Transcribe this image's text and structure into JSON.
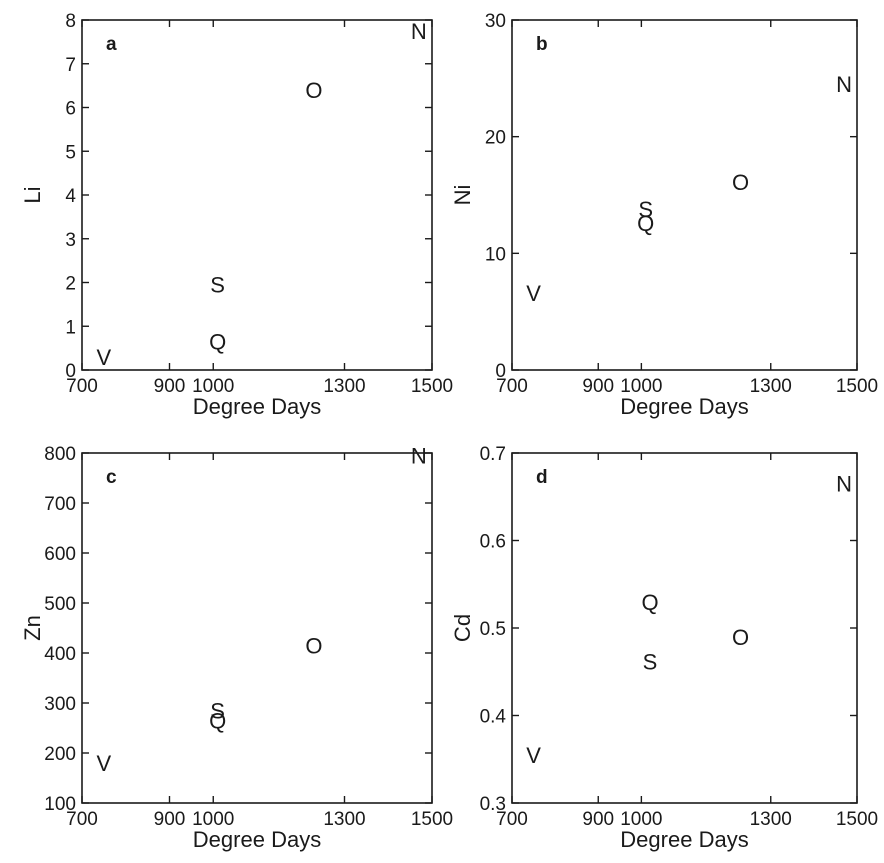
{
  "chart_data": [
    {
      "type": "scatter",
      "panel_label": "a",
      "xlabel": "Degree Days",
      "ylabel": "Li",
      "xlim": [
        700,
        1500
      ],
      "ylim": [
        0,
        8
      ],
      "xticks": [
        700,
        900,
        1000,
        1300,
        1500
      ],
      "xtick_labels": [
        "700",
        "900",
        "1000",
        "1300",
        "1500"
      ],
      "yticks": [
        0,
        1,
        2,
        3,
        4,
        5,
        6,
        7,
        8
      ],
      "ytick_labels": [
        "0",
        "1",
        "2",
        "3",
        "4",
        "5",
        "6",
        "7",
        "8"
      ],
      "points": [
        {
          "label": "V",
          "x": 750,
          "y": 0.3
        },
        {
          "label": "Q",
          "x": 1010,
          "y": 0.65
        },
        {
          "label": "S",
          "x": 1010,
          "y": 1.95
        },
        {
          "label": "O",
          "x": 1230,
          "y": 6.4
        },
        {
          "label": "N",
          "x": 1470,
          "y": 7.75
        }
      ]
    },
    {
      "type": "scatter",
      "panel_label": "b",
      "xlabel": "Degree Days",
      "ylabel": "Ni",
      "xlim": [
        700,
        1500
      ],
      "ylim": [
        0,
        30
      ],
      "xticks": [
        700,
        900,
        1000,
        1300,
        1500
      ],
      "xtick_labels": [
        "700",
        "900",
        "1000",
        "1300",
        "1500"
      ],
      "yticks": [
        0,
        10,
        20,
        30
      ],
      "ytick_labels": [
        "0",
        "10",
        "20",
        "30"
      ],
      "points": [
        {
          "label": "V",
          "x": 750,
          "y": 6.6
        },
        {
          "label": "Q",
          "x": 1010,
          "y": 12.6
        },
        {
          "label": "S",
          "x": 1010,
          "y": 13.8
        },
        {
          "label": "O",
          "x": 1230,
          "y": 16.1
        },
        {
          "label": "N",
          "x": 1470,
          "y": 24.5
        }
      ]
    },
    {
      "type": "scatter",
      "panel_label": "c",
      "xlabel": "Degree Days",
      "ylabel": "Zn",
      "xlim": [
        700,
        1500
      ],
      "ylim": [
        100,
        800
      ],
      "xticks": [
        700,
        900,
        1000,
        1300,
        1500
      ],
      "xtick_labels": [
        "700",
        "900",
        "1000",
        "1300",
        "1500"
      ],
      "yticks": [
        100,
        200,
        300,
        400,
        500,
        600,
        700,
        800
      ],
      "ytick_labels": [
        "100",
        "200",
        "300",
        "400",
        "500",
        "600",
        "700",
        "800"
      ],
      "points": [
        {
          "label": "V",
          "x": 750,
          "y": 180
        },
        {
          "label": "Q",
          "x": 1010,
          "y": 265
        },
        {
          "label": "S",
          "x": 1010,
          "y": 285
        },
        {
          "label": "O",
          "x": 1230,
          "y": 415
        },
        {
          "label": "N",
          "x": 1470,
          "y": 795
        }
      ]
    },
    {
      "type": "scatter",
      "panel_label": "d",
      "xlabel": "Degree Days",
      "ylabel": "Cd",
      "xlim": [
        700,
        1500
      ],
      "ylim": [
        0.3,
        0.7
      ],
      "xticks": [
        700,
        900,
        1000,
        1300,
        1500
      ],
      "xtick_labels": [
        "700",
        "900",
        "1000",
        "1300",
        "1500"
      ],
      "yticks": [
        0.3,
        0.4,
        0.5,
        0.6,
        0.7
      ],
      "ytick_labels": [
        "0.3",
        "0.4",
        "0.5",
        "0.6",
        "0.7"
      ],
      "points": [
        {
          "label": "V",
          "x": 750,
          "y": 0.355
        },
        {
          "label": "Q",
          "x": 1020,
          "y": 0.53
        },
        {
          "label": "S",
          "x": 1020,
          "y": 0.462
        },
        {
          "label": "O",
          "x": 1230,
          "y": 0.49
        },
        {
          "label": "N",
          "x": 1470,
          "y": 0.665
        }
      ]
    }
  ]
}
